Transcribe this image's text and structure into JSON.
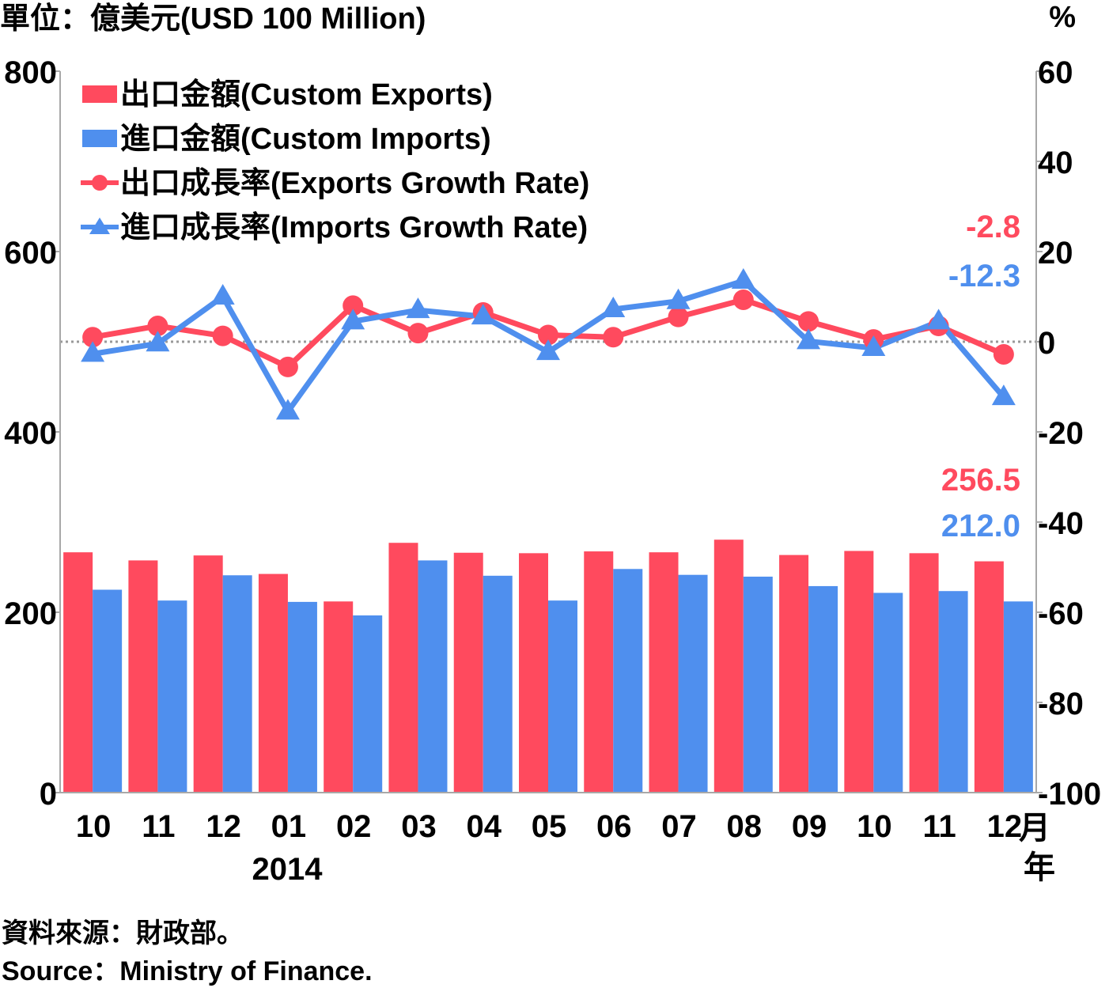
{
  "chart_data": {
    "type": "bar",
    "left_axis_title": "單位：億美元(USD 100 Million)",
    "right_axis_title": "%",
    "categories": [
      "10",
      "11",
      "12",
      "01",
      "02",
      "03",
      "04",
      "05",
      "06",
      "07",
      "08",
      "09",
      "10",
      "11",
      "12"
    ],
    "month_unit": "月",
    "year_label": "2014",
    "year_unit": "年",
    "y_left": {
      "min": 0,
      "max": 800,
      "ticks": [
        "0",
        "200",
        "400",
        "600",
        "800"
      ]
    },
    "y_right": {
      "min": -100,
      "max": 60,
      "ticks": [
        "-100",
        "-80",
        "-60",
        "-40",
        "-20",
        "0",
        "20",
        "40",
        "60"
      ]
    },
    "legend_placement": "top-left",
    "series": [
      {
        "name": "出口金額(Custom Exports)",
        "type": "bar",
        "axis": "left",
        "color": "#ff4a5e",
        "values": [
          266.5,
          257.5,
          263,
          242.5,
          212,
          277,
          266,
          265.5,
          267.5,
          266.5,
          280.5,
          263.5,
          268,
          265.5,
          256.5
        ]
      },
      {
        "name": "進口金額(Custom Imports)",
        "type": "bar",
        "axis": "left",
        "color": "#4f8fee",
        "values": [
          225,
          213,
          241,
          211.5,
          196.5,
          257.5,
          240.5,
          213,
          248,
          241.5,
          239.5,
          229,
          221.5,
          223.5,
          212
        ]
      },
      {
        "name": "出口成長率(Exports Growth Rate)",
        "type": "line",
        "marker": "circle",
        "axis": "right",
        "color": "#ff4a5e",
        "values": [
          1,
          3.5,
          1.3,
          -5.6,
          8,
          1.9,
          6.5,
          1.5,
          1,
          5.5,
          9.3,
          4.5,
          0.5,
          3.5,
          -2.8
        ]
      },
      {
        "name": "進口成長率(Imports Growth Rate)",
        "type": "line",
        "marker": "triangle",
        "axis": "right",
        "color": "#4f8fee",
        "values": [
          -2.7,
          -0.4,
          10,
          -15.5,
          4.5,
          7,
          5.6,
          -2.3,
          7.2,
          9,
          13.5,
          0.1,
          -1.4,
          4.5,
          -12.3
        ]
      }
    ],
    "annotations": {
      "export_growth_last": "-2.8",
      "import_growth_last": "-12.3",
      "export_value_last": "256.5",
      "import_value_last": "212.0"
    },
    "zero_line": {
      "axis": "right",
      "value": 0,
      "style": "dotted",
      "color": "#999999"
    }
  },
  "footer": {
    "source_zh": "資料來源：財政部。",
    "source_en": "Source：Ministry of Finance."
  }
}
